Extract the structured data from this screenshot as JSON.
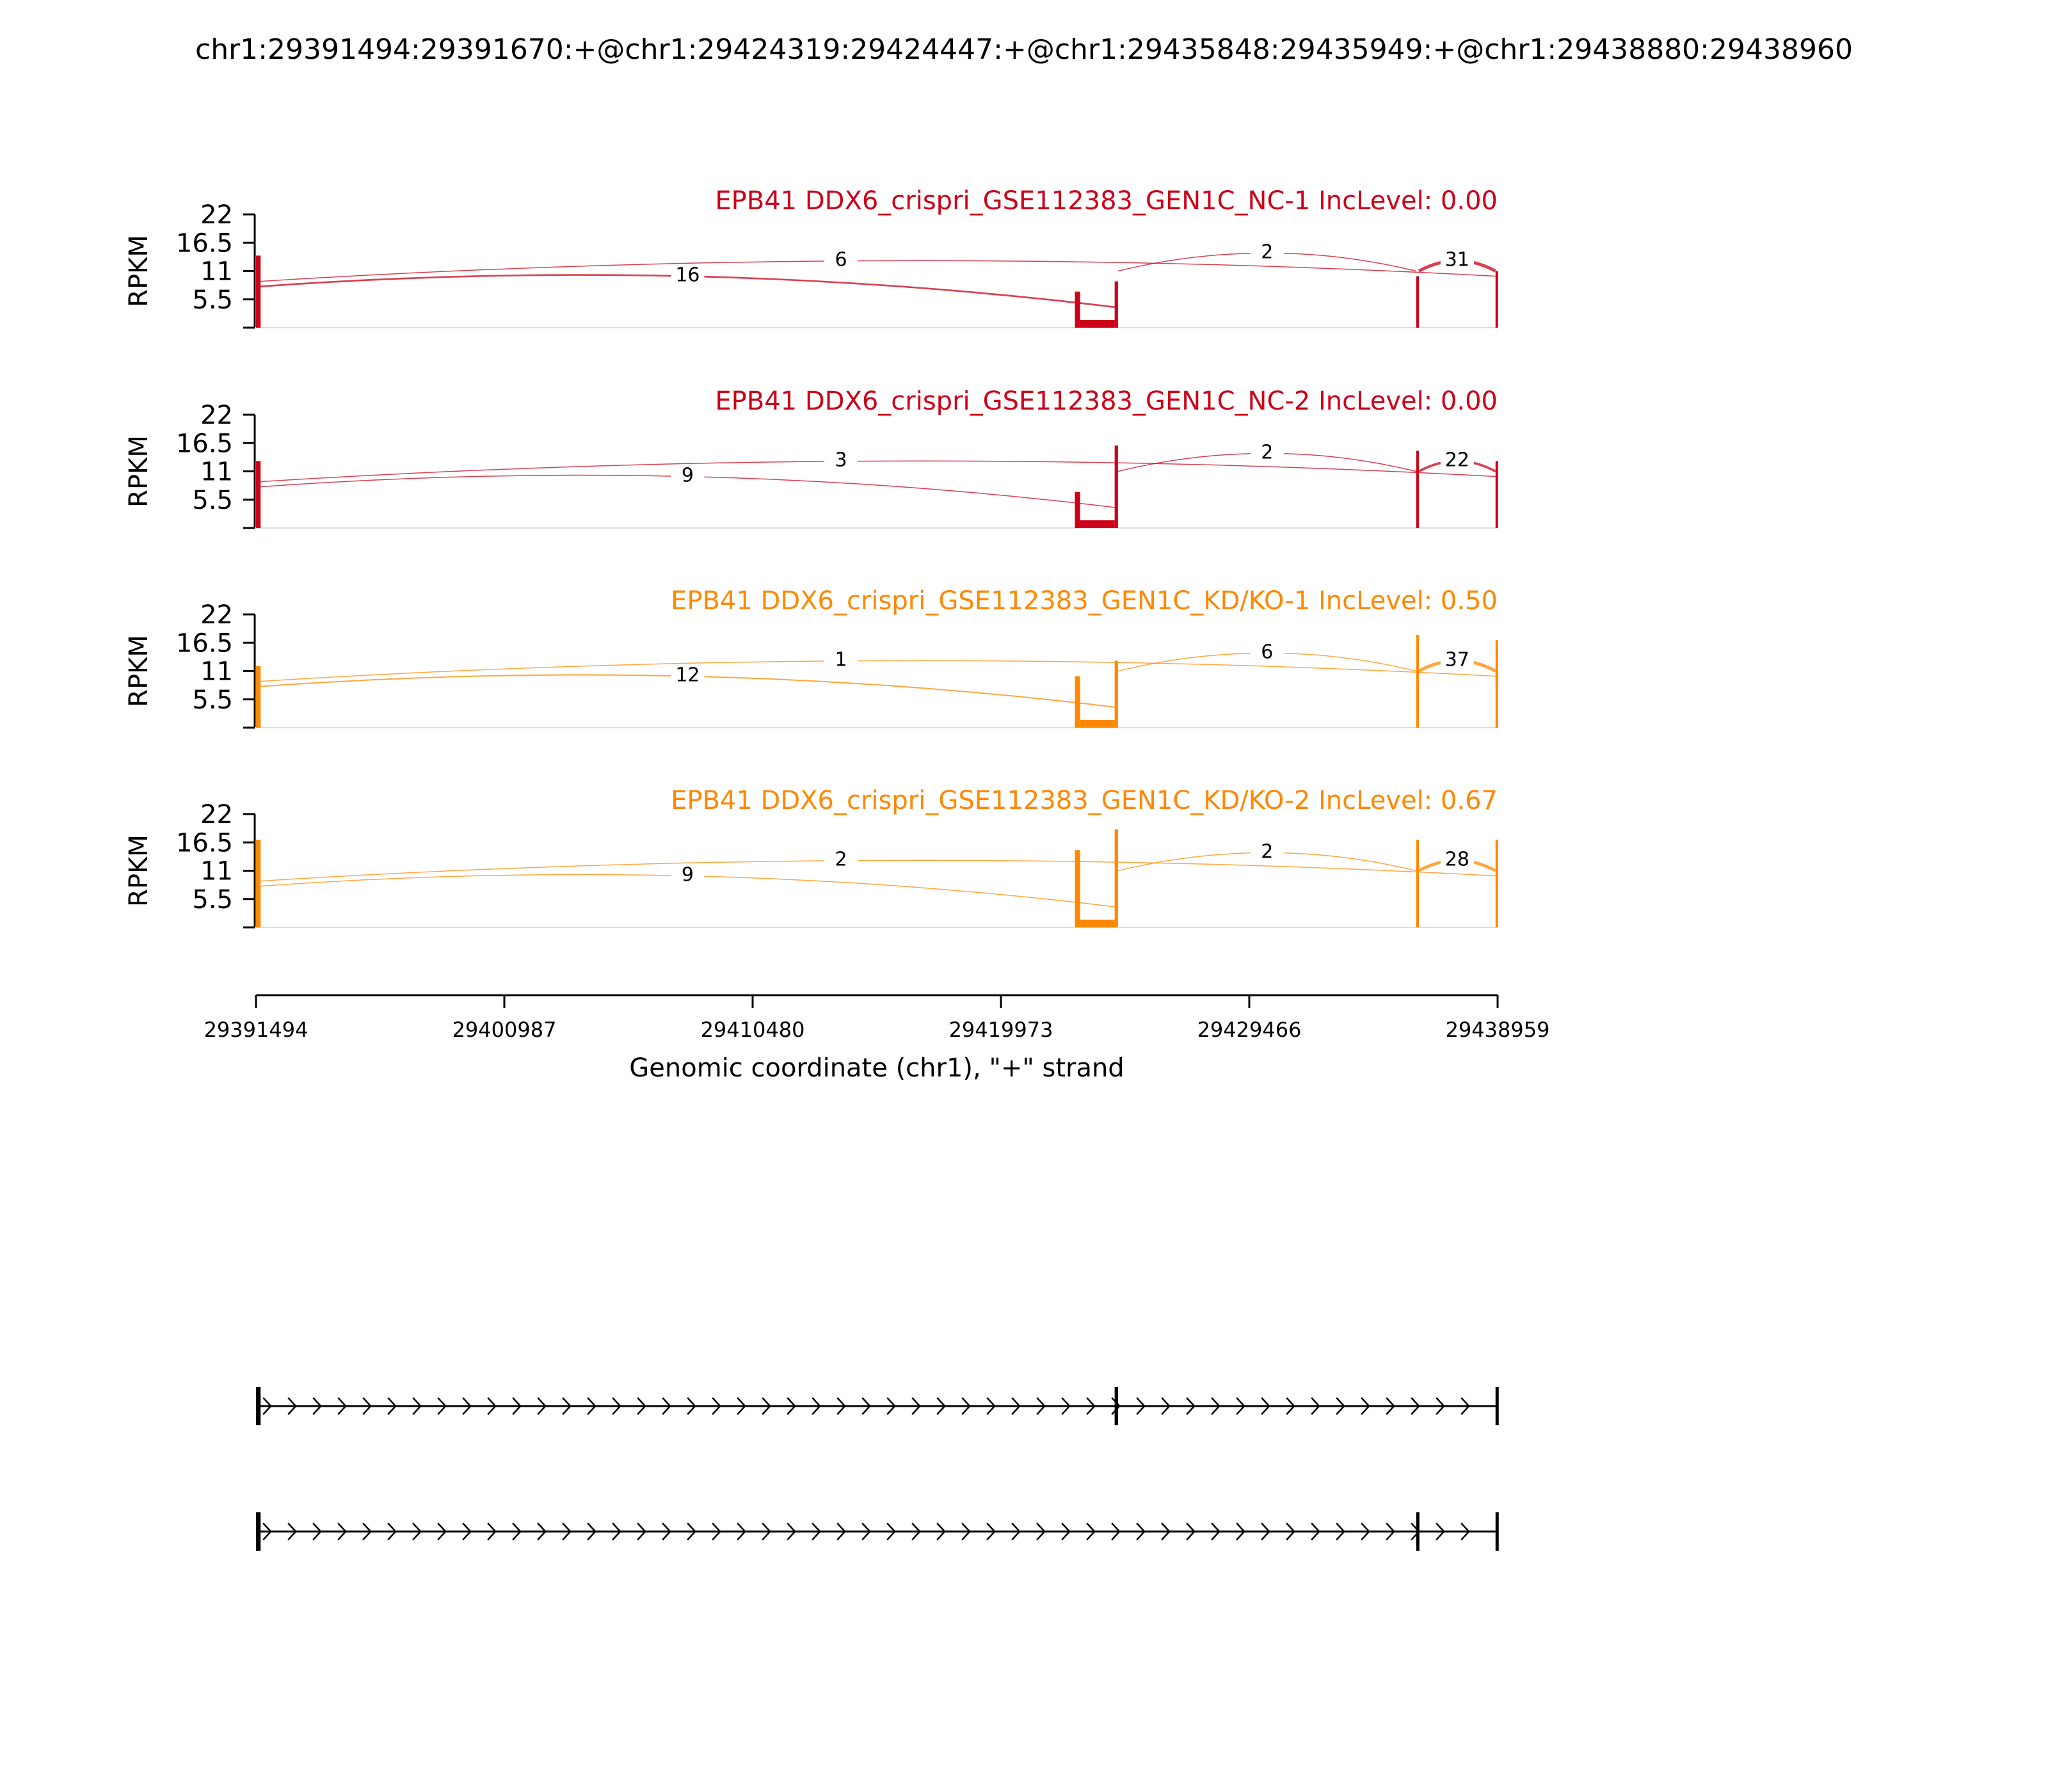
{
  "title": "chr1:29391494:29391670:+@chr1:29424319:29424447:+@chr1:29435848:29435949:+@chr1:29438880:29438960",
  "chart_data": {
    "type": "area",
    "genomic_range": [
      29391494,
      29438959
    ],
    "ylabel": "RPKM",
    "ylim": [
      0,
      22
    ],
    "yticks": [
      "22",
      "16.5",
      "11",
      "5.5"
    ],
    "xticks": [
      "29391494",
      "29400987",
      "29410480",
      "29419973",
      "29429466",
      "29438959"
    ],
    "xlabel": "Genomic coordinate (chr1), \"+\" strand",
    "colors": {
      "nc": "#cc0018",
      "kd": "#ff8800"
    },
    "exons": [
      [
        29391494,
        29391670
      ],
      [
        29424319,
        29424447
      ],
      [
        29435848,
        29435949
      ],
      [
        29438880,
        29438960
      ]
    ],
    "samples": [
      {
        "label": "EPB41 DDX6_crispri_GSE112383_GEN1C_NC-1 IncLevel: 0.00",
        "color": "#cc0018",
        "junctions": [
          {
            "from": 29391670,
            "to": 29424319,
            "count": "16",
            "side": "down"
          },
          {
            "from": 29391670,
            "to": 29438880,
            "count": "6",
            "side": "down"
          },
          {
            "from": 29424447,
            "to": 29435848,
            "count": "2",
            "side": "up"
          },
          {
            "from": 29435949,
            "to": 29438880,
            "count": "31",
            "side": "up"
          }
        ],
        "coverage": [
          {
            "start": 29391494,
            "end": 29391670,
            "value": 14
          },
          {
            "start": 29422800,
            "end": 29423000,
            "value": 7
          },
          {
            "start": 29423000,
            "end": 29424319,
            "value": 1.5
          },
          {
            "start": 29424319,
            "end": 29424447,
            "value": 9
          },
          {
            "start": 29435848,
            "end": 29435949,
            "value": 10
          },
          {
            "start": 29438880,
            "end": 29438960,
            "value": 11
          }
        ]
      },
      {
        "label": "EPB41 DDX6_crispri_GSE112383_GEN1C_NC-2 IncLevel: 0.00",
        "color": "#cc0018",
        "junctions": [
          {
            "from": 29391670,
            "to": 29424319,
            "count": "9",
            "side": "down"
          },
          {
            "from": 29391670,
            "to": 29438880,
            "count": "3",
            "side": "down"
          },
          {
            "from": 29424447,
            "to": 29435848,
            "count": "2",
            "side": "up"
          },
          {
            "from": 29435949,
            "to": 29438880,
            "count": "22",
            "side": "up"
          }
        ],
        "coverage": [
          {
            "start": 29391494,
            "end": 29391670,
            "value": 13
          },
          {
            "start": 29422800,
            "end": 29423000,
            "value": 7
          },
          {
            "start": 29423000,
            "end": 29424319,
            "value": 1.5
          },
          {
            "start": 29424319,
            "end": 29424447,
            "value": 16
          },
          {
            "start": 29435848,
            "end": 29435949,
            "value": 15
          },
          {
            "start": 29438880,
            "end": 29438960,
            "value": 13
          }
        ]
      },
      {
        "label": "EPB41 DDX6_crispri_GSE112383_GEN1C_KD/KO-1 IncLevel: 0.50",
        "color": "#ff8800",
        "junctions": [
          {
            "from": 29391670,
            "to": 29424319,
            "count": "12",
            "side": "down"
          },
          {
            "from": 29391670,
            "to": 29438880,
            "count": "1",
            "side": "down"
          },
          {
            "from": 29424447,
            "to": 29435848,
            "count": "6",
            "side": "up"
          },
          {
            "from": 29435949,
            "to": 29438880,
            "count": "37",
            "side": "up"
          }
        ],
        "coverage": [
          {
            "start": 29391494,
            "end": 29391670,
            "value": 12
          },
          {
            "start": 29422800,
            "end": 29423000,
            "value": 10
          },
          {
            "start": 29423000,
            "end": 29424319,
            "value": 1.5
          },
          {
            "start": 29424319,
            "end": 29424447,
            "value": 13
          },
          {
            "start": 29435848,
            "end": 29435949,
            "value": 18
          },
          {
            "start": 29438880,
            "end": 29438960,
            "value": 17
          }
        ]
      },
      {
        "label": "EPB41 DDX6_crispri_GSE112383_GEN1C_KD/KO-2 IncLevel: 0.67",
        "color": "#ff8800",
        "junctions": [
          {
            "from": 29391670,
            "to": 29424319,
            "count": "9",
            "side": "down"
          },
          {
            "from": 29391670,
            "to": 29438880,
            "count": "2",
            "side": "down"
          },
          {
            "from": 29424447,
            "to": 29435848,
            "count": "2",
            "side": "up"
          },
          {
            "from": 29435949,
            "to": 29438880,
            "count": "28",
            "side": "up"
          }
        ],
        "coverage": [
          {
            "start": 29391494,
            "end": 29391670,
            "value": 17
          },
          {
            "start": 29422800,
            "end": 29423000,
            "value": 15
          },
          {
            "start": 29423000,
            "end": 29424319,
            "value": 1.5
          },
          {
            "start": 29424319,
            "end": 29424447,
            "value": 19
          },
          {
            "start": 29435848,
            "end": 29435949,
            "value": 17
          },
          {
            "start": 29438880,
            "end": 29438960,
            "value": 17
          }
        ]
      }
    ],
    "isoforms": [
      {
        "exons": [
          [
            29391494,
            29391670
          ],
          [
            29424319,
            29424447
          ],
          [
            29438880,
            29438960
          ]
        ]
      },
      {
        "exons": [
          [
            29391494,
            29391670
          ],
          [
            29435848,
            29435949
          ],
          [
            29438880,
            29438960
          ]
        ]
      }
    ]
  }
}
